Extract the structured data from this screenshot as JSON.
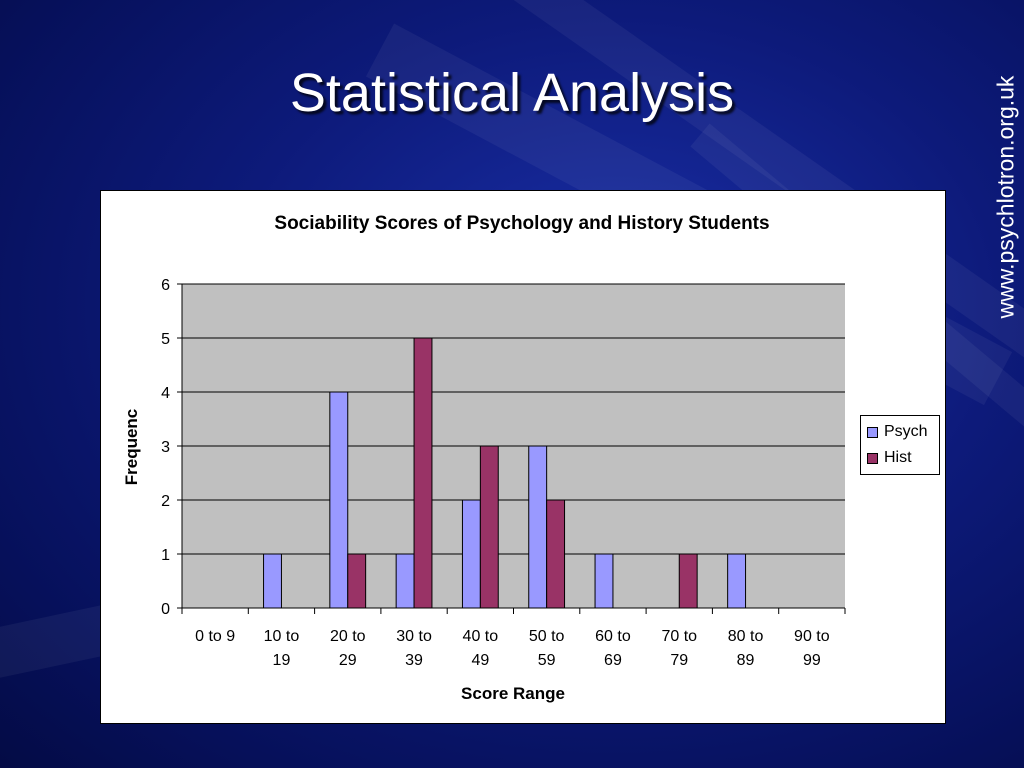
{
  "slide": {
    "title": "Statistical Analysis",
    "watermark": "www.psychlotron.org.uk"
  },
  "colors": {
    "psych": "#9999ff",
    "hist": "#993366",
    "plot_bg": "#c0c0c0"
  },
  "chart_data": {
    "type": "bar",
    "title": "Sociability Scores of Psychology and History Students",
    "xlabel": "Score Range",
    "ylabel": "Frequenc",
    "categories": [
      [
        "0 to 9"
      ],
      [
        "10 to",
        "19"
      ],
      [
        "20 to",
        "29"
      ],
      [
        "30 to",
        "39"
      ],
      [
        "40 to",
        "49"
      ],
      [
        "50 to",
        "59"
      ],
      [
        "60 to",
        "69"
      ],
      [
        "70 to",
        "79"
      ],
      [
        "80 to",
        "89"
      ],
      [
        "90 to",
        "99"
      ]
    ],
    "series": [
      {
        "name": "Psych",
        "values": [
          0,
          1,
          4,
          1,
          2,
          3,
          1,
          0,
          1,
          0
        ]
      },
      {
        "name": "Hist",
        "values": [
          0,
          0,
          1,
          5,
          3,
          2,
          0,
          1,
          0,
          0
        ]
      }
    ],
    "ylim": [
      0,
      6
    ],
    "yticks": [
      0,
      1,
      2,
      3,
      4,
      5,
      6
    ],
    "grid": true,
    "legend_position": "right"
  }
}
